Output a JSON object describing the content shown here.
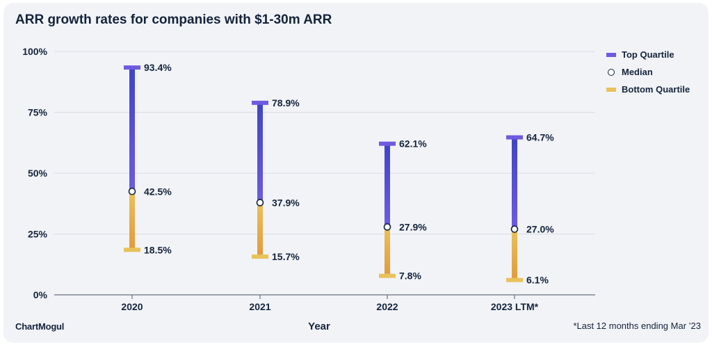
{
  "brand": "ChartMogul",
  "footnote": "*Last 12 months ending Mar ’23",
  "colors": {
    "top_quartile": "#6d5be0",
    "top_quartile_dark": "#3f45c4",
    "bottom_quartile": "#e8c25a",
    "bottom_quartile_dark": "#e29a3c",
    "text": "#14233a",
    "grid": "#d9dce3"
  },
  "legend": [
    {
      "label": "Top Quartile",
      "marker": "bar",
      "color": "#6d5be0"
    },
    {
      "label": "Median",
      "marker": "circle",
      "color": "#ffffff"
    },
    {
      "label": "Bottom Quartile",
      "marker": "bar",
      "color": "#e8c25a"
    }
  ],
  "chart_data": {
    "type": "range",
    "title": "ARR growth rates for companies with $1-30m ARR",
    "xlabel": "Year",
    "ylabel": "",
    "ylim": [
      0,
      100
    ],
    "yticks": [
      0,
      25,
      50,
      75,
      100
    ],
    "ytick_labels": [
      "0%",
      "25%",
      "50%",
      "75%",
      "100%"
    ],
    "grid": true,
    "legend_position": "right",
    "categories": [
      "2020",
      "2021",
      "2022",
      "2023 LTM*"
    ],
    "series": [
      {
        "name": "Top Quartile",
        "values": [
          93.4,
          78.9,
          62.1,
          64.7
        ],
        "labels": [
          "93.4%",
          "78.9%",
          "62.1%",
          "64.7%"
        ]
      },
      {
        "name": "Median",
        "values": [
          42.5,
          37.9,
          27.9,
          27.0
        ],
        "labels": [
          "42.5%",
          "37.9%",
          "27.9%",
          "27.0%"
        ]
      },
      {
        "name": "Bottom Quartile",
        "values": [
          18.5,
          15.7,
          7.8,
          6.1
        ],
        "labels": [
          "18.5%",
          "15.7%",
          "7.8%",
          "6.1%"
        ]
      }
    ]
  }
}
